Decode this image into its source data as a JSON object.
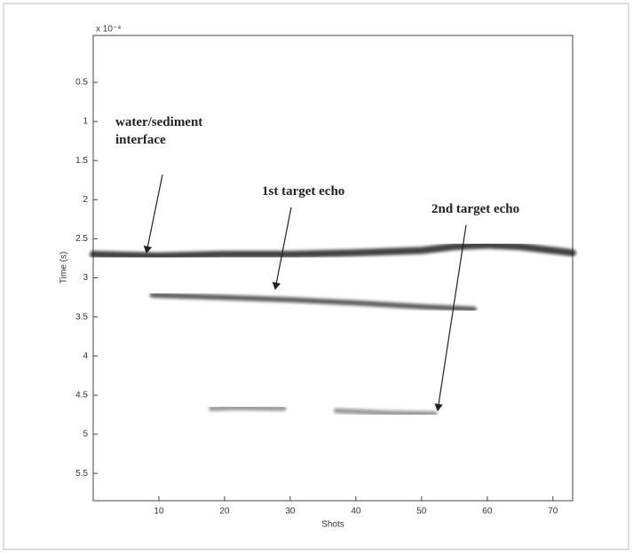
{
  "chart_data": {
    "type": "line",
    "xlabel": "Shots",
    "ylabel": "Time (s)",
    "y_multiplier": "x 10⁻⁴",
    "xlim": [
      0,
      73
    ],
    "xticks": [
      10,
      20,
      30,
      40,
      50,
      60,
      70
    ],
    "ylim": [
      -0.1,
      5.85
    ],
    "y_inverted": true,
    "yticks": [
      0.5,
      1,
      1.5,
      2,
      2.5,
      3,
      3.5,
      4,
      4.5,
      5,
      5.5
    ],
    "grid": false,
    "series": [
      {
        "color": "#222222",
        "x": [
          0,
          10,
          20,
          30,
          40,
          50,
          55,
          60,
          65,
          73
        ],
        "values": [
          2.7,
          2.72,
          2.7,
          2.7,
          2.68,
          2.65,
          2.6,
          2.58,
          2.6,
          2.68
        ]
      },
      {
        "color": "#444444",
        "x": [
          9,
          20,
          30,
          40,
          50,
          58
        ],
        "values": [
          3.22,
          3.25,
          3.28,
          3.32,
          3.37,
          3.4
        ]
      },
      {
        "color": "#888888",
        "x": [
          18,
          22,
          29,
          null,
          37,
          45,
          52
        ],
        "values": [
          4.67,
          4.66,
          4.67,
          null,
          4.7,
          4.73,
          4.74
        ]
      }
    ],
    "annotations": [
      {
        "lines": [
          "water/sediment",
          "interface"
        ]
      },
      {
        "lines": [
          "1st target echo"
        ]
      },
      {
        "lines": [
          "2nd target echo"
        ]
      }
    ]
  }
}
